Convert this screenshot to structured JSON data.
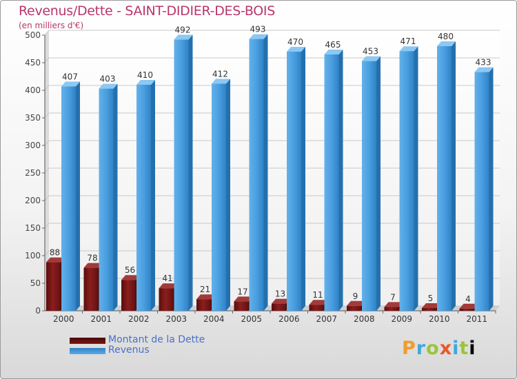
{
  "header": {
    "title": "Revenus/Dette - SAINT-DIDIER-DES-BOIS",
    "subtitle": "(en milliers d'€)"
  },
  "logo": {
    "text": "Proxiti",
    "letters": [
      "P",
      "r",
      "o",
      "x",
      "i",
      "t",
      "i"
    ]
  },
  "colors": {
    "debt": "#7a1414",
    "revenue": "#4a9fe0",
    "title": "#b8366a",
    "legend_text": "#4a6fc9"
  },
  "chart_data": {
    "type": "bar",
    "title": "Revenus/Dette - SAINT-DIDIER-DES-BOIS",
    "subtitle": "(en milliers d'€)",
    "categories": [
      "2000",
      "2001",
      "2002",
      "2003",
      "2004",
      "2005",
      "2006",
      "2007",
      "2008",
      "2009",
      "2010",
      "2011"
    ],
    "series": [
      {
        "name": "Montant de la Dette",
        "values": [
          88,
          78,
          56,
          41,
          21,
          17,
          13,
          11,
          9,
          7,
          5,
          4
        ]
      },
      {
        "name": "Revenus",
        "values": [
          407,
          403,
          410,
          492,
          412,
          493,
          470,
          465,
          453,
          471,
          480,
          433
        ]
      }
    ],
    "ylim": [
      0,
      500
    ],
    "yticks": [
      0,
      50,
      100,
      150,
      200,
      250,
      300,
      350,
      400,
      450,
      500
    ],
    "grid": true,
    "legend_position": "bottom-left",
    "data_labels": true
  }
}
